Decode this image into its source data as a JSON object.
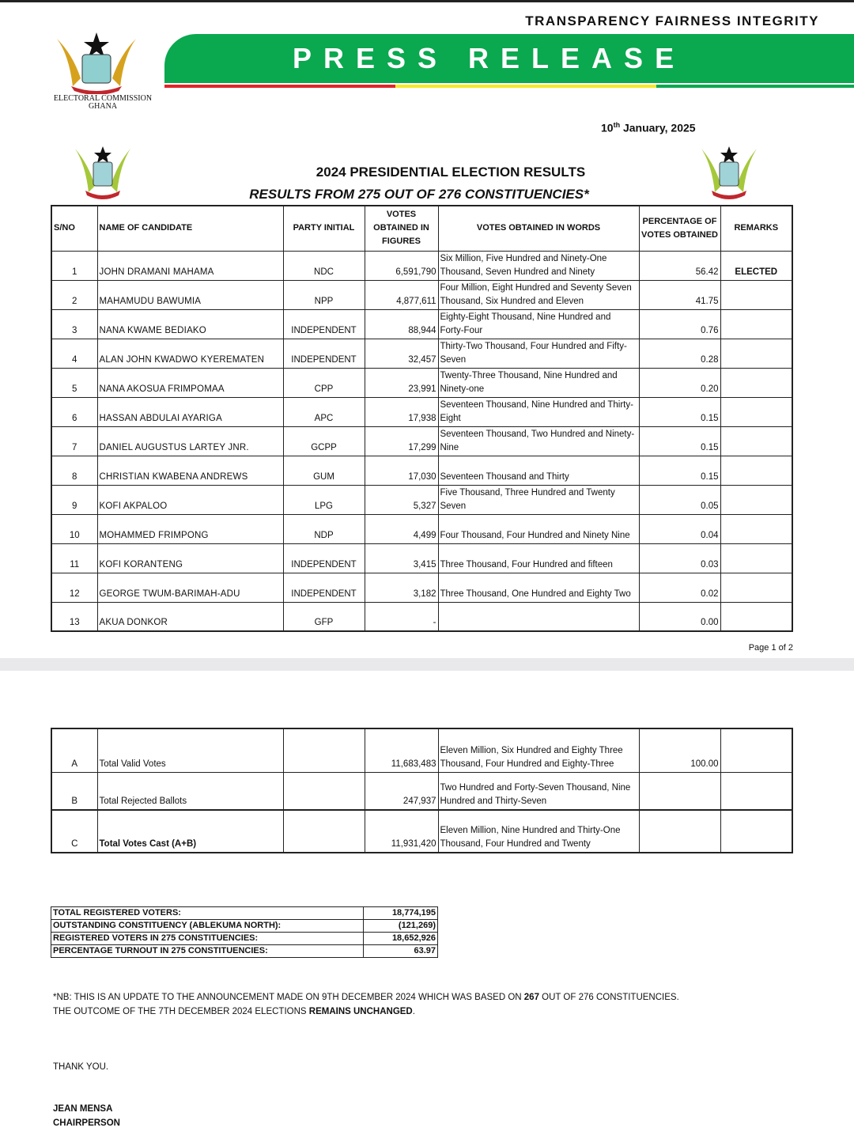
{
  "header": {
    "motto": "TRANSPARENCY FAIRNESS INTEGRITY",
    "banner": "PRESS RELEASE",
    "org_line1": "ELECTORAL COMMISSION",
    "org_line2": "GHANA",
    "date_day": "10",
    "date_suffix": "th",
    "date_rest": " January, 2025",
    "colors": {
      "green": "#0aa84f",
      "red": "#e0262b",
      "yellow": "#f5e829"
    }
  },
  "title": "2024 PRESIDENTIAL ELECTION RESULTS",
  "subtitle": "RESULTS FROM 275 OUT OF 276 CONSTITUENCIES*",
  "columns": [
    "S/NO",
    "NAME OF CANDIDATE",
    "PARTY INITIAL",
    "VOTES OBTAINED IN FIGURES",
    "VOTES OBTAINED IN WORDS",
    "PERCENTAGE OF VOTES OBTAINED",
    "REMARKS"
  ],
  "rows": [
    [
      "1",
      "JOHN DRAMANI MAHAMA",
      "NDC",
      "6,591,790",
      "Six Million, Five Hundred and Ninety-One Thousand, Seven Hundred and Ninety",
      "56.42",
      "ELECTED"
    ],
    [
      "2",
      "MAHAMUDU BAWUMIA",
      "NPP",
      "4,877,611",
      "Four Million, Eight Hundred and Seventy Seven Thousand, Six Hundred and Eleven",
      "41.75",
      ""
    ],
    [
      "3",
      "NANA KWAME BEDIAKO",
      "INDEPENDENT",
      "88,944",
      "Eighty-Eight Thousand, Nine Hundred and Forty-Four",
      "0.76",
      ""
    ],
    [
      "4",
      "ALAN JOHN KWADWO KYEREMATEN",
      "INDEPENDENT",
      "32,457",
      "Thirty-Two Thousand, Four Hundred and Fifty-Seven",
      "0.28",
      ""
    ],
    [
      "5",
      "NANA AKOSUA FRIMPOMAA",
      "CPP",
      "23,991",
      "Twenty-Three Thousand, Nine Hundred and Ninety-one",
      "0.20",
      ""
    ],
    [
      "6",
      "HASSAN ABDULAI AYARIGA",
      "APC",
      "17,938",
      "Seventeen Thousand, Nine Hundred and Thirty-Eight",
      "0.15",
      ""
    ],
    [
      "7",
      "DANIEL AUGUSTUS LARTEY JNR.",
      "GCPP",
      "17,299",
      "Seventeen Thousand, Two Hundred and Ninety-Nine",
      "0.15",
      ""
    ],
    [
      "8",
      "CHRISTIAN KWABENA ANDREWS",
      "GUM",
      "17,030",
      "Seventeen Thousand and Thirty",
      "0.15",
      ""
    ],
    [
      "9",
      "KOFI AKPALOO",
      "LPG",
      "5,327",
      "Five Thousand, Three Hundred and Twenty Seven",
      "0.05",
      ""
    ],
    [
      "10",
      "MOHAMMED FRIMPONG",
      "NDP",
      "4,499",
      "Four Thousand, Four Hundred and Ninety Nine",
      "0.04",
      ""
    ],
    [
      "11",
      "KOFI KORANTENG",
      "INDEPENDENT",
      "3,415",
      "Three Thousand, Four Hundred and fifteen",
      "0.03",
      ""
    ],
    [
      "12",
      "GEORGE TWUM-BARIMAH-ADU",
      "INDEPENDENT",
      "3,182",
      "Three Thousand, One Hundred and Eighty Two",
      "0.02",
      ""
    ],
    [
      "13",
      "AKUA DONKOR",
      "GFP",
      "-",
      "",
      "0.00",
      ""
    ]
  ],
  "page_number": "Page 1 of 2",
  "totals": [
    [
      "A",
      "Total Valid Votes",
      "11,683,483",
      "Eleven Million, Six Hundred and Eighty Three Thousand, Four Hundred and Eighty-Three",
      "100.00"
    ],
    [
      "B",
      "Total Rejected Ballots",
      "247,937",
      "Two Hundred and Forty-Seven Thousand, Nine Hundred and Thirty-Seven",
      ""
    ],
    [
      "C",
      "Total Votes Cast (A+B)",
      "11,931,420",
      "Eleven Million, Nine Hundred and Thirty-One Thousand, Four Hundred and Twenty",
      ""
    ]
  ],
  "summary": [
    [
      "TOTAL REGISTERED VOTERS:",
      "18,774,195"
    ],
    [
      "OUTSTANDING CONSTITUENCY (ABLEKUMA NORTH):",
      "(121,269)"
    ],
    [
      "REGISTERED VOTERS IN 275 CONSTITUENCIES:",
      "18,652,926"
    ],
    [
      "PERCENTAGE TURNOUT IN 275 CONSTITUENCIES:",
      "63.97"
    ]
  ],
  "note": {
    "a": "*NB: THIS IS AN UPDATE TO THE ANNOUNCEMENT MADE ON 9TH DECEMBER 2024 WHICH WAS BASED ON ",
    "b": "267",
    "c": " OUT OF 276 CONSTITUENCIES.",
    "d": "THE OUTCOME OF THE 7TH DECEMBER 2024 ELECTIONS ",
    "e": "REMAINS UNCHANGED",
    "f": "."
  },
  "closing": "THANK YOU.",
  "signatory": "JEAN MENSA",
  "signatory_title": "CHAIRPERSON"
}
